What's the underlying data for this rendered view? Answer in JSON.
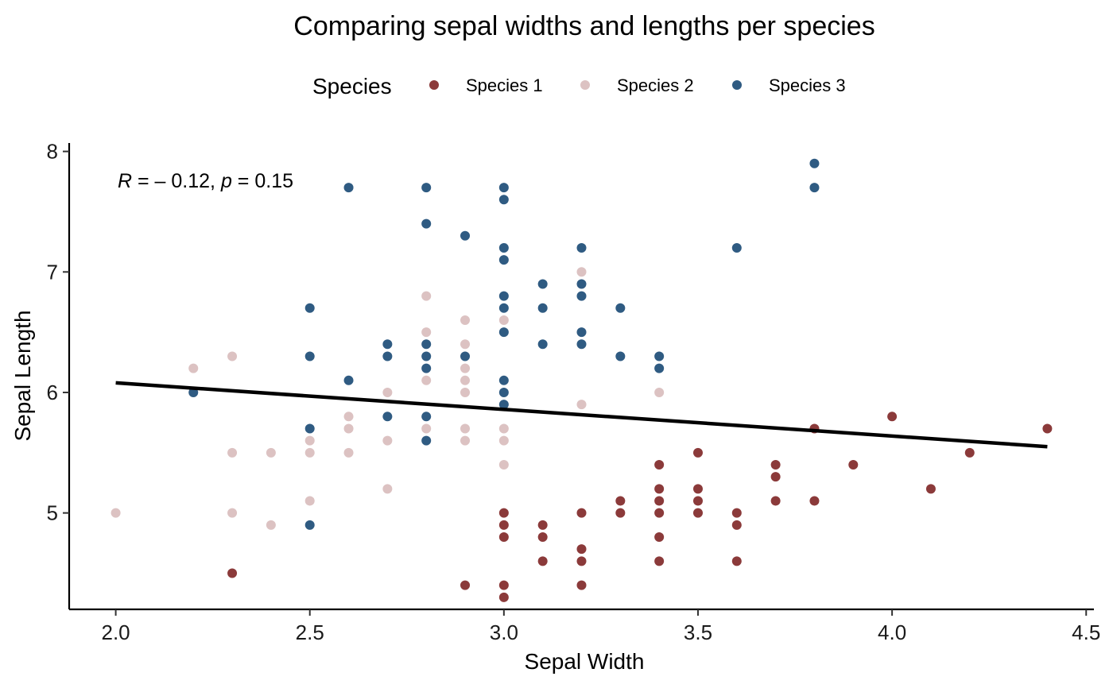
{
  "chart_data": {
    "type": "scatter",
    "title": "Comparing sepal widths and lengths per species",
    "xlabel": "Sepal Width",
    "ylabel": "Sepal Length",
    "xlim": [
      1.88,
      4.52
    ],
    "ylim": [
      4.2,
      8.07
    ],
    "xticks": [
      "2.0",
      "2.5",
      "3.0",
      "3.5",
      "4.0",
      "4.5"
    ],
    "yticks": [
      "5",
      "6",
      "7",
      "8"
    ],
    "grid": false,
    "legend": {
      "title": "Species",
      "placement": "top"
    },
    "annotation": {
      "var": "R",
      "r_text": " = – 0.12, ",
      "p_var": "p",
      "p_text": " = 0.15"
    },
    "trendline": {
      "x": [
        2.0,
        4.4
      ],
      "y": [
        6.08,
        5.55
      ],
      "color": "#000000"
    },
    "series": [
      {
        "name": "Species 1",
        "color": "#8b3a3a",
        "points": [
          [
            2.3,
            4.5
          ],
          [
            2.9,
            4.4
          ],
          [
            3.0,
            5.0
          ],
          [
            3.0,
            4.9
          ],
          [
            3.0,
            4.8
          ],
          [
            3.0,
            4.4
          ],
          [
            3.0,
            4.3
          ],
          [
            3.1,
            4.9
          ],
          [
            3.1,
            4.8
          ],
          [
            3.1,
            4.6
          ],
          [
            3.2,
            5.0
          ],
          [
            3.2,
            4.7
          ],
          [
            3.2,
            4.6
          ],
          [
            3.2,
            4.4
          ],
          [
            3.3,
            5.1
          ],
          [
            3.3,
            5.0
          ],
          [
            3.4,
            5.4
          ],
          [
            3.4,
            5.2
          ],
          [
            3.4,
            5.1
          ],
          [
            3.4,
            5.0
          ],
          [
            3.4,
            4.8
          ],
          [
            3.4,
            4.6
          ],
          [
            3.5,
            5.5
          ],
          [
            3.5,
            5.2
          ],
          [
            3.5,
            5.1
          ],
          [
            3.5,
            5.0
          ],
          [
            3.6,
            5.0
          ],
          [
            3.6,
            4.9
          ],
          [
            3.6,
            4.6
          ],
          [
            3.7,
            5.4
          ],
          [
            3.7,
            5.3
          ],
          [
            3.7,
            5.1
          ],
          [
            3.8,
            5.7
          ],
          [
            3.8,
            5.1
          ],
          [
            3.9,
            5.4
          ],
          [
            4.0,
            5.8
          ],
          [
            4.1,
            5.2
          ],
          [
            4.2,
            5.5
          ],
          [
            4.4,
            5.7
          ]
        ]
      },
      {
        "name": "Species 2",
        "color": "#dcc2c2",
        "points": [
          [
            2.0,
            5.0
          ],
          [
            2.2,
            6.2
          ],
          [
            2.3,
            6.3
          ],
          [
            2.3,
            5.5
          ],
          [
            2.3,
            5.0
          ],
          [
            2.4,
            5.5
          ],
          [
            2.4,
            4.9
          ],
          [
            2.5,
            5.6
          ],
          [
            2.5,
            5.5
          ],
          [
            2.5,
            5.1
          ],
          [
            2.6,
            5.8
          ],
          [
            2.6,
            5.7
          ],
          [
            2.6,
            5.5
          ],
          [
            2.7,
            6.0
          ],
          [
            2.7,
            5.6
          ],
          [
            2.7,
            5.2
          ],
          [
            2.8,
            6.8
          ],
          [
            2.8,
            6.5
          ],
          [
            2.8,
            6.1
          ],
          [
            2.8,
            5.7
          ],
          [
            2.9,
            6.6
          ],
          [
            2.9,
            6.4
          ],
          [
            2.9,
            6.2
          ],
          [
            2.9,
            6.1
          ],
          [
            2.9,
            6.0
          ],
          [
            2.9,
            5.7
          ],
          [
            2.9,
            5.6
          ],
          [
            3.0,
            6.6
          ],
          [
            3.0,
            5.7
          ],
          [
            3.0,
            5.6
          ],
          [
            3.0,
            5.4
          ],
          [
            3.2,
            7.0
          ],
          [
            3.2,
            5.9
          ],
          [
            3.4,
            6.0
          ]
        ]
      },
      {
        "name": "Species 3",
        "color": "#2f5b82",
        "points": [
          [
            2.2,
            6.0
          ],
          [
            2.5,
            6.7
          ],
          [
            2.5,
            6.3
          ],
          [
            2.5,
            5.7
          ],
          [
            2.5,
            4.9
          ],
          [
            2.6,
            7.7
          ],
          [
            2.6,
            6.1
          ],
          [
            2.7,
            6.4
          ],
          [
            2.7,
            6.3
          ],
          [
            2.7,
            5.8
          ],
          [
            2.8,
            7.7
          ],
          [
            2.8,
            7.4
          ],
          [
            2.8,
            6.4
          ],
          [
            2.8,
            6.3
          ],
          [
            2.8,
            6.2
          ],
          [
            2.8,
            5.8
          ],
          [
            2.8,
            5.6
          ],
          [
            2.9,
            7.3
          ],
          [
            2.9,
            6.3
          ],
          [
            3.0,
            7.7
          ],
          [
            3.0,
            7.6
          ],
          [
            3.0,
            7.2
          ],
          [
            3.0,
            7.1
          ],
          [
            3.0,
            6.8
          ],
          [
            3.0,
            6.7
          ],
          [
            3.0,
            6.5
          ],
          [
            3.0,
            6.1
          ],
          [
            3.0,
            6.0
          ],
          [
            3.0,
            5.9
          ],
          [
            3.1,
            6.9
          ],
          [
            3.1,
            6.7
          ],
          [
            3.1,
            6.4
          ],
          [
            3.2,
            7.2
          ],
          [
            3.2,
            6.9
          ],
          [
            3.2,
            6.8
          ],
          [
            3.2,
            6.5
          ],
          [
            3.2,
            6.4
          ],
          [
            3.3,
            6.7
          ],
          [
            3.3,
            6.3
          ],
          [
            3.4,
            6.3
          ],
          [
            3.4,
            6.2
          ],
          [
            3.6,
            7.2
          ],
          [
            3.8,
            7.9
          ],
          [
            3.8,
            7.7
          ]
        ]
      }
    ]
  }
}
